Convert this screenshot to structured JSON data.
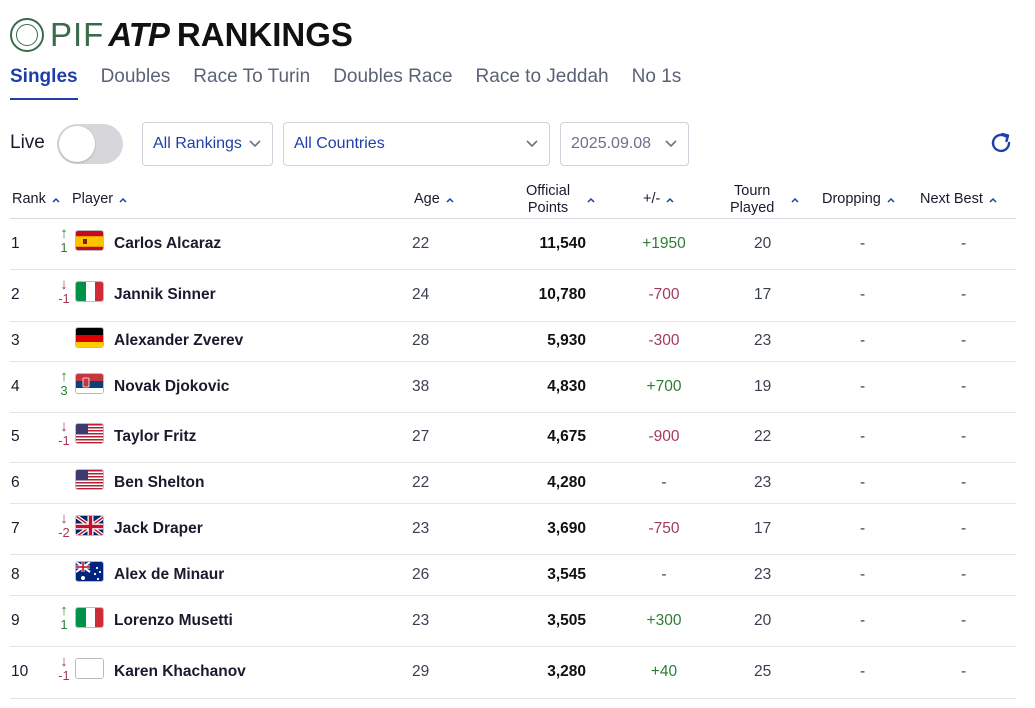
{
  "header": {
    "pif": "PIF",
    "atp": "ATP",
    "title": "RANKINGS"
  },
  "tabs": [
    "Singles",
    "Doubles",
    "Race To Turin",
    "Doubles Race",
    "Race to Jeddah",
    "No 1s"
  ],
  "active_tab": "Singles",
  "filters": {
    "live_label": "Live",
    "live_on": false,
    "rankings": "All Rankings",
    "countries": "All Countries",
    "date": "2025.09.08"
  },
  "columns": {
    "rank": "Rank",
    "player": "Player",
    "age": "Age",
    "points_line1": "Official",
    "points_line2": "Points",
    "plusminus": "+/-",
    "tourn_line1": "Tourn",
    "tourn_line2": "Played",
    "dropping": "Dropping",
    "next_best": "Next Best"
  },
  "colors": {
    "accent": "#1e3fa8",
    "up": "#2e7d32",
    "down": "#a23b5a",
    "pif_green": "#3a6b4b"
  },
  "rows": [
    {
      "rank": "1",
      "move_dir": "up",
      "move": "1",
      "flag": "spain",
      "name": "Carlos Alcaraz",
      "age": "22",
      "points": "11,540",
      "pm": "+1950",
      "tourn": "20",
      "dropping": "-",
      "next_best": "-"
    },
    {
      "rank": "2",
      "move_dir": "down",
      "move": "-1",
      "flag": "italy",
      "name": "Jannik Sinner",
      "age": "24",
      "points": "10,780",
      "pm": "-700",
      "tourn": "17",
      "dropping": "-",
      "next_best": "-"
    },
    {
      "rank": "3",
      "move_dir": "none",
      "move": "",
      "flag": "germany",
      "name": "Alexander Zverev",
      "age": "28",
      "points": "5,930",
      "pm": "-300",
      "tourn": "23",
      "dropping": "-",
      "next_best": "-"
    },
    {
      "rank": "4",
      "move_dir": "up",
      "move": "3",
      "flag": "serbia",
      "name": "Novak Djokovic",
      "age": "38",
      "points": "4,830",
      "pm": "+700",
      "tourn": "19",
      "dropping": "-",
      "next_best": "-"
    },
    {
      "rank": "5",
      "move_dir": "down",
      "move": "-1",
      "flag": "usa",
      "name": "Taylor Fritz",
      "age": "27",
      "points": "4,675",
      "pm": "-900",
      "tourn": "22",
      "dropping": "-",
      "next_best": "-"
    },
    {
      "rank": "6",
      "move_dir": "none",
      "move": "",
      "flag": "usa",
      "name": "Ben Shelton",
      "age": "22",
      "points": "4,280",
      "pm": "-",
      "tourn": "23",
      "dropping": "-",
      "next_best": "-"
    },
    {
      "rank": "7",
      "move_dir": "down",
      "move": "-2",
      "flag": "uk",
      "name": "Jack Draper",
      "age": "23",
      "points": "3,690",
      "pm": "-750",
      "tourn": "17",
      "dropping": "-",
      "next_best": "-"
    },
    {
      "rank": "8",
      "move_dir": "none",
      "move": "",
      "flag": "australia",
      "name": "Alex de Minaur",
      "age": "26",
      "points": "3,545",
      "pm": "-",
      "tourn": "23",
      "dropping": "-",
      "next_best": "-"
    },
    {
      "rank": "9",
      "move_dir": "up",
      "move": "1",
      "flag": "italy",
      "name": "Lorenzo Musetti",
      "age": "23",
      "points": "3,505",
      "pm": "+300",
      "tourn": "20",
      "dropping": "-",
      "next_best": "-"
    },
    {
      "rank": "10",
      "move_dir": "down",
      "move": "-1",
      "flag": "none",
      "name": "Karen Khachanov",
      "age": "29",
      "points": "3,280",
      "pm": "+40",
      "tourn": "25",
      "dropping": "-",
      "next_best": "-"
    }
  ]
}
